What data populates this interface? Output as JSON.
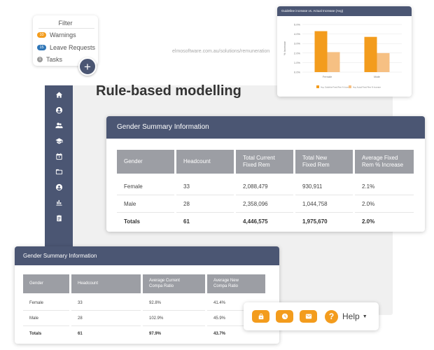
{
  "filter": {
    "title": "Filter",
    "items": [
      {
        "count": "10",
        "label": "Warnings",
        "color": "#f39c1d"
      },
      {
        "count": "15",
        "label": "Leave Requests",
        "color": "#2e75b6"
      },
      {
        "count": "1",
        "label": "Tasks",
        "color": "#9a9a9a"
      }
    ],
    "add_label": "+"
  },
  "app": {
    "url": "elmosoftware.com.au/solutions/remuneration",
    "title": "Rule-based modelling",
    "sidebar_icons": [
      "home-icon",
      "user-icon",
      "people-icon",
      "graduation-cap-icon",
      "calendar-icon",
      "folder-icon",
      "globe-user-icon",
      "chart-icon",
      "clipboard-icon"
    ]
  },
  "chart": {
    "title": "Guideline increase vs. Actual Increase (Avg)",
    "chart_data": {
      "type": "bar",
      "title": "Guideline increase vs. Actual Increase (Avg)",
      "ylabel": "% Increase",
      "xlabel": "",
      "categories": [
        "Female",
        "Male"
      ],
      "ylim": [
        0,
        5
      ],
      "yticks": [
        "0.0%",
        "1.0%",
        "2.0%",
        "3.0%",
        "4.0%",
        "5.0%"
      ],
      "series": [
        {
          "name": "Avg. Guideline Fixed Rem % Increase",
          "color": "#f39c1d",
          "values": [
            4.3,
            3.7
          ]
        },
        {
          "name": "Avg. Actual Fixed Rem % Increase",
          "color": "#f6c083",
          "values": [
            2.1,
            2.0
          ]
        }
      ],
      "legend": "bottom",
      "grid": true
    }
  },
  "summary1": {
    "title": "Gender Summary Information",
    "headers": [
      "Gender",
      "Headcount",
      "Total Current\nFixed Rem",
      "Total New\nFixed Rem",
      "Average Fixed\nRem % Increase"
    ],
    "rows": [
      [
        "Female",
        "33",
        "2,088,479",
        "930,911",
        "2.1%"
      ],
      [
        "Male",
        "28",
        "2,358,096",
        "1,044,758",
        "2.0%"
      ]
    ],
    "totals": [
      "Totals",
      "61",
      "4,446,575",
      "1,975,670",
      "2.0%"
    ]
  },
  "summary2": {
    "title": "Gender Summary Information",
    "headers": [
      "Gender",
      "Headcount",
      "Average Current\nCompa Ratio",
      "Average New\nCompa Ratio"
    ],
    "rows": [
      [
        "Female",
        "33",
        "92.8%",
        "41.4%"
      ],
      [
        "Male",
        "28",
        "102.9%",
        "45.9%"
      ]
    ],
    "totals": [
      "Totals",
      "61",
      "97.9%",
      "43.7%"
    ]
  },
  "helpbar": {
    "label": "Help",
    "accent": "#f39c1d",
    "icons": [
      "lock-icon",
      "clock-icon",
      "mail-icon",
      "question-icon"
    ]
  }
}
